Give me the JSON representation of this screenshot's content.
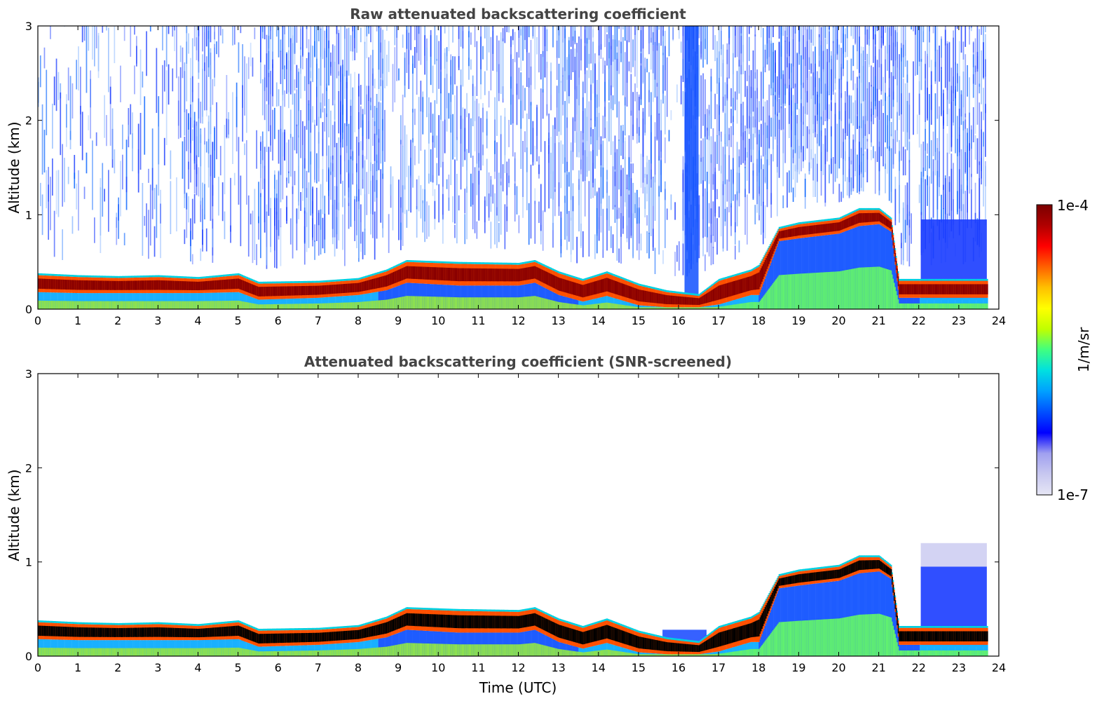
{
  "chart_data": [
    {
      "type": "heatmap",
      "title": "Raw attenuated backscattering coefficient",
      "xlabel": "",
      "ylabel": "Altitude (km)",
      "xlim": [
        0,
        24
      ],
      "ylim": [
        0,
        3
      ],
      "xticks": [
        0,
        1,
        2,
        3,
        4,
        5,
        6,
        7,
        8,
        9,
        10,
        11,
        12,
        13,
        14,
        15,
        16,
        17,
        18,
        19,
        20,
        21,
        22,
        23,
        24
      ],
      "yticks": [
        0,
        1,
        2,
        3
      ],
      "layer_top_km": [
        [
          0,
          0.36
        ],
        [
          1,
          0.34
        ],
        [
          2,
          0.33
        ],
        [
          3,
          0.34
        ],
        [
          4,
          0.32
        ],
        [
          5,
          0.36
        ],
        [
          5.5,
          0.27
        ],
        [
          7,
          0.28
        ],
        [
          8,
          0.31
        ],
        [
          8.7,
          0.4
        ],
        [
          9.2,
          0.5
        ],
        [
          10.5,
          0.48
        ],
        [
          12,
          0.47
        ],
        [
          12.4,
          0.5
        ],
        [
          13,
          0.38
        ],
        [
          13.6,
          0.3
        ],
        [
          14.2,
          0.38
        ],
        [
          15,
          0.25
        ],
        [
          15.7,
          0.18
        ],
        [
          16.5,
          0.14
        ],
        [
          17,
          0.3
        ],
        [
          17.8,
          0.4
        ],
        [
          18,
          0.45
        ],
        [
          18.5,
          0.85
        ],
        [
          19,
          0.9
        ],
        [
          20,
          0.95
        ],
        [
          20.5,
          1.05
        ],
        [
          21,
          1.05
        ],
        [
          21.3,
          0.95
        ],
        [
          21.5,
          0.3
        ],
        [
          22,
          0.3
        ],
        [
          23.7,
          0.3
        ]
      ],
      "layer_bottom_km": [
        [
          0,
          0.18
        ],
        [
          1,
          0.17
        ],
        [
          2,
          0.17
        ],
        [
          3,
          0.17
        ],
        [
          4,
          0.17
        ],
        [
          5,
          0.18
        ],
        [
          5.5,
          0.1
        ],
        [
          7,
          0.12
        ],
        [
          8,
          0.15
        ],
        [
          8.7,
          0.2
        ],
        [
          9.2,
          0.28
        ],
        [
          10.5,
          0.25
        ],
        [
          12,
          0.25
        ],
        [
          12.4,
          0.28
        ],
        [
          13,
          0.15
        ],
        [
          13.6,
          0.08
        ],
        [
          14.2,
          0.14
        ],
        [
          15,
          0.04
        ],
        [
          15.7,
          0.02
        ],
        [
          16.5,
          0.02
        ],
        [
          17,
          0.05
        ],
        [
          17.8,
          0.15
        ],
        [
          18,
          0.15
        ],
        [
          18.5,
          0.72
        ],
        [
          19,
          0.75
        ],
        [
          20,
          0.8
        ],
        [
          20.5,
          0.88
        ],
        [
          21,
          0.9
        ],
        [
          21.3,
          0.82
        ],
        [
          21.5,
          0.12
        ],
        [
          22,
          0.12
        ],
        [
          23.7,
          0.12
        ]
      ],
      "series_name_colorbar": "1/m/sr",
      "color_scale": {
        "min_label": "1e-7",
        "max_label": "1e-4",
        "unit": "1/m/sr",
        "scale": "log"
      },
      "grid": false
    },
    {
      "type": "heatmap",
      "title": "Attenuated backscattering coefficient (SNR-screened)",
      "xlabel": "Time (UTC)",
      "ylabel": "Altitude (km)",
      "xlim": [
        0,
        24
      ],
      "ylim": [
        0,
        3
      ],
      "xticks": [
        0,
        1,
        2,
        3,
        4,
        5,
        6,
        7,
        8,
        9,
        10,
        11,
        12,
        13,
        14,
        15,
        16,
        17,
        18,
        19,
        20,
        21,
        22,
        23,
        24
      ],
      "yticks": [
        0,
        1,
        2,
        3
      ],
      "screened": true,
      "grid": false
    }
  ],
  "colorbar": {
    "label": "1/m/sr",
    "max_label": "1e-4",
    "min_label": "1e-7",
    "colors": [
      "#e6e6f5",
      "#c8c8f0",
      "#a0a0f0",
      "#0000ff",
      "#0050ff",
      "#00a0ff",
      "#00e0e0",
      "#40ff80",
      "#c0ff00",
      "#ffff00",
      "#ffc000",
      "#ff6000",
      "#ff0000",
      "#b00000",
      "#7a0000"
    ]
  }
}
